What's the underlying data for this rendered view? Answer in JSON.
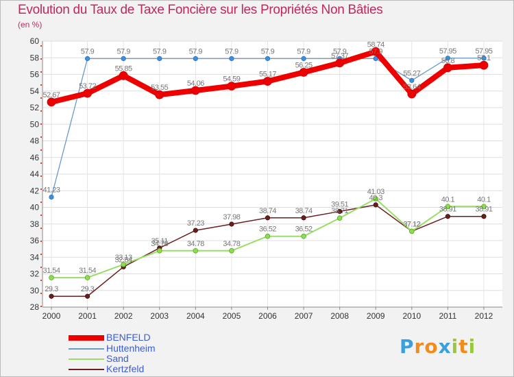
{
  "title": "Evolution du Taux de Taxe Foncière sur les Propriétés Non Bâties",
  "unit_label": "(en %)",
  "logo": {
    "text": "Proxiti",
    "letters": [
      "P",
      "r",
      "o",
      "x",
      "i",
      "t",
      "i"
    ]
  },
  "chart_data": {
    "type": "line",
    "title": "Evolution du Taux de Taxe Foncière sur les Propriétés Non Bâties",
    "ylabel": "(en %)",
    "xlabel": "",
    "x": [
      "2000",
      "2001",
      "2002",
      "2003",
      "2004",
      "2005",
      "2006",
      "2007",
      "2008",
      "2009",
      "2010",
      "2011",
      "2012"
    ],
    "ylim": [
      28,
      60
    ],
    "yticks": [
      28,
      30,
      32,
      34,
      36,
      38,
      40,
      42,
      44,
      46,
      48,
      50,
      52,
      54,
      56,
      58,
      60
    ],
    "legend_position": "bottom-left",
    "series": [
      {
        "name": "BENFELD",
        "color": "#ee0000",
        "values": [
          52.67,
          53.72,
          55.85,
          53.55,
          54.06,
          54.59,
          55.17,
          56.25,
          57.37,
          58.74,
          53.64,
          56.8,
          57.1
        ],
        "labels": [
          "52.67",
          "53.72",
          "55.85",
          "53.55",
          "54.06",
          "54.59",
          "55.17",
          "56.25",
          "57.37",
          "58.74",
          "53.64",
          "56.8",
          "57.1"
        ]
      },
      {
        "name": "Huttenheim",
        "color": "#6699cc",
        "values": [
          41.23,
          57.9,
          57.9,
          57.9,
          57.9,
          57.9,
          57.9,
          57.9,
          57.9,
          57.9,
          55.27,
          57.95,
          57.95
        ],
        "labels": [
          "41.23",
          "57.9",
          "57.9",
          "57.9",
          "57.9",
          "57.9",
          "57.9",
          "57.9",
          "57.9",
          "57.9",
          "55.27",
          "57.95",
          "57.95"
        ]
      },
      {
        "name": "Sand",
        "color": "#99dd66",
        "values": [
          31.54,
          31.54,
          33.13,
          34.78,
          34.78,
          34.78,
          36.52,
          36.52,
          38.71,
          41.03,
          37.12,
          40.1,
          40.1
        ],
        "labels": [
          "31.54",
          "31.54",
          "33.13",
          "34.78",
          "34.78",
          "34.78",
          "36.52",
          "36.52",
          "38.71",
          "41.03",
          "37.12",
          "40.1",
          "40.1"
        ]
      },
      {
        "name": "Kertzfeld",
        "color": "#6b1e1e",
        "values": [
          29.3,
          29.3,
          32.84,
          35.11,
          37.23,
          37.98,
          38.74,
          38.74,
          39.51,
          40.3,
          37.12,
          38.91,
          38.91
        ],
        "labels": [
          "29.3",
          "29.3",
          "32.84",
          "35.11",
          "37.23",
          "37.98",
          "38.74",
          "38.74",
          "39.51",
          "40.3",
          "37.12",
          "38.91",
          "38.91"
        ]
      }
    ]
  }
}
